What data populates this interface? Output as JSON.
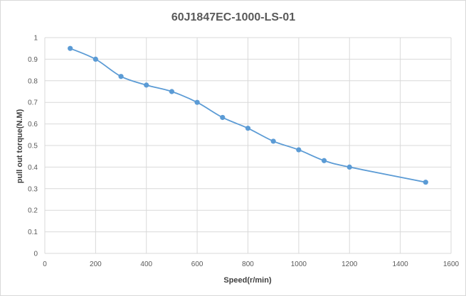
{
  "chart_data": {
    "type": "line",
    "title": "60J1847EC-1000-LS-01",
    "xlabel": "Speed(r/min)",
    "ylabel": "pull out torque(N.M)",
    "xlim": [
      0,
      1600
    ],
    "ylim": [
      0,
      1
    ],
    "x_ticks": [
      0,
      200,
      400,
      600,
      800,
      1000,
      1200,
      1400,
      1600
    ],
    "y_ticks": [
      0,
      0.1,
      0.2,
      0.3,
      0.4,
      0.5,
      0.6,
      0.7,
      0.8,
      0.9,
      1
    ],
    "grid": true,
    "legend": "none",
    "series_color": "#5b9bd5",
    "series": [
      {
        "x": [
          100,
          200,
          300,
          400,
          500,
          600,
          700,
          800,
          900,
          1000,
          1100,
          1200,
          1500
        ],
        "values": [
          0.95,
          0.9,
          0.82,
          0.78,
          0.75,
          0.7,
          0.63,
          0.58,
          0.52,
          0.48,
          0.43,
          0.4,
          0.33
        ]
      }
    ]
  }
}
